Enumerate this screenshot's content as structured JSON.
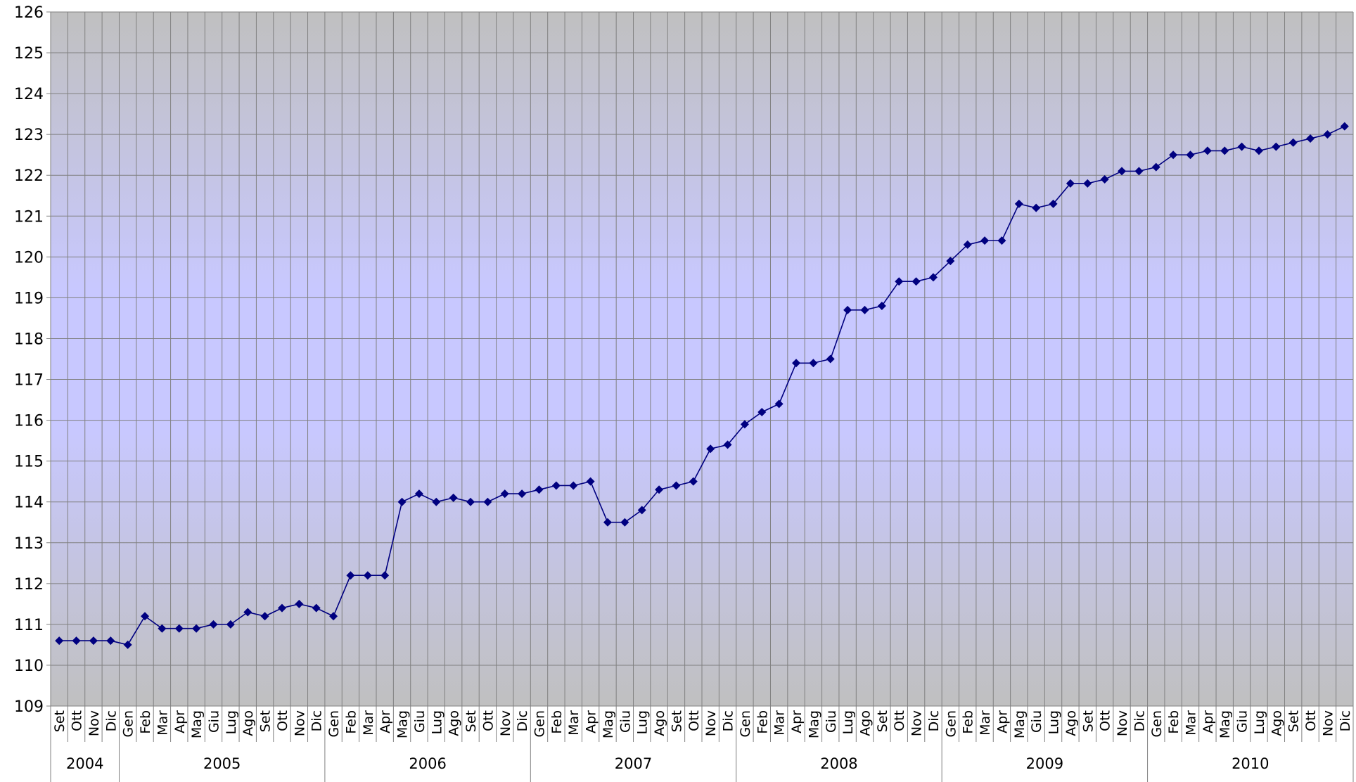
{
  "chart_data": {
    "type": "line",
    "categories": [
      {
        "label": "Set",
        "group": "2004"
      },
      {
        "label": "Ott",
        "group": "2004"
      },
      {
        "label": "Nov",
        "group": "2004"
      },
      {
        "label": "Dic",
        "group": "2004"
      },
      {
        "label": "Gen",
        "group": "2005"
      },
      {
        "label": "Feb",
        "group": "2005"
      },
      {
        "label": "Mar",
        "group": "2005"
      },
      {
        "label": "Apr",
        "group": "2005"
      },
      {
        "label": "Mag",
        "group": "2005"
      },
      {
        "label": "Giu",
        "group": "2005"
      },
      {
        "label": "Lug",
        "group": "2005"
      },
      {
        "label": "Ago",
        "group": "2005"
      },
      {
        "label": "Set",
        "group": "2005"
      },
      {
        "label": "Ott",
        "group": "2005"
      },
      {
        "label": "Nov",
        "group": "2005"
      },
      {
        "label": "Dic",
        "group": "2005"
      },
      {
        "label": "Gen",
        "group": "2006"
      },
      {
        "label": "Feb",
        "group": "2006"
      },
      {
        "label": "Mar",
        "group": "2006"
      },
      {
        "label": "Apr",
        "group": "2006"
      },
      {
        "label": "Mag",
        "group": "2006"
      },
      {
        "label": "Giu",
        "group": "2006"
      },
      {
        "label": "Lug",
        "group": "2006"
      },
      {
        "label": "Ago",
        "group": "2006"
      },
      {
        "label": "Set",
        "group": "2006"
      },
      {
        "label": "Ott",
        "group": "2006"
      },
      {
        "label": "Nov",
        "group": "2006"
      },
      {
        "label": "Dic",
        "group": "2006"
      },
      {
        "label": "Gen",
        "group": "2007"
      },
      {
        "label": "Feb",
        "group": "2007"
      },
      {
        "label": "Mar",
        "group": "2007"
      },
      {
        "label": "Apr",
        "group": "2007"
      },
      {
        "label": "Mag",
        "group": "2007"
      },
      {
        "label": "Giu",
        "group": "2007"
      },
      {
        "label": "Lug",
        "group": "2007"
      },
      {
        "label": "Ago",
        "group": "2007"
      },
      {
        "label": "Set",
        "group": "2007"
      },
      {
        "label": "Ott",
        "group": "2007"
      },
      {
        "label": "Nov",
        "group": "2007"
      },
      {
        "label": "Dic",
        "group": "2007"
      },
      {
        "label": "Gen",
        "group": "2008"
      },
      {
        "label": "Feb",
        "group": "2008"
      },
      {
        "label": "Mar",
        "group": "2008"
      },
      {
        "label": "Apr",
        "group": "2008"
      },
      {
        "label": "Mag",
        "group": "2008"
      },
      {
        "label": "Giu",
        "group": "2008"
      },
      {
        "label": "Lug",
        "group": "2008"
      },
      {
        "label": "Ago",
        "group": "2008"
      },
      {
        "label": "Set",
        "group": "2008"
      },
      {
        "label": "Ott",
        "group": "2008"
      },
      {
        "label": "Nov",
        "group": "2008"
      },
      {
        "label": "Dic",
        "group": "2008"
      },
      {
        "label": "Gen",
        "group": "2009"
      },
      {
        "label": "Feb",
        "group": "2009"
      },
      {
        "label": "Mar",
        "group": "2009"
      },
      {
        "label": "Apr",
        "group": "2009"
      },
      {
        "label": "Mag",
        "group": "2009"
      },
      {
        "label": "Giu",
        "group": "2009"
      },
      {
        "label": "Lug",
        "group": "2009"
      },
      {
        "label": "Ago",
        "group": "2009"
      },
      {
        "label": "Set",
        "group": "2009"
      },
      {
        "label": "Ott",
        "group": "2009"
      },
      {
        "label": "Nov",
        "group": "2009"
      },
      {
        "label": "Dic",
        "group": "2009"
      },
      {
        "label": "Gen",
        "group": "2010"
      },
      {
        "label": "Feb",
        "group": "2010"
      },
      {
        "label": "Mar",
        "group": "2010"
      },
      {
        "label": "Apr",
        "group": "2010"
      },
      {
        "label": "Mag",
        "group": "2010"
      },
      {
        "label": "Giu",
        "group": "2010"
      },
      {
        "label": "Lug",
        "group": "2010"
      },
      {
        "label": "Ago",
        "group": "2010"
      },
      {
        "label": "Set",
        "group": "2010"
      },
      {
        "label": "Ott",
        "group": "2010"
      },
      {
        "label": "Nov",
        "group": "2010"
      },
      {
        "label": "Dic",
        "group": "2010"
      }
    ],
    "values": [
      110.6,
      110.6,
      110.6,
      110.6,
      110.5,
      111.2,
      110.9,
      110.9,
      110.9,
      111.0,
      111.0,
      111.3,
      111.2,
      111.4,
      111.5,
      111.4,
      111.2,
      112.2,
      112.2,
      112.2,
      114.0,
      114.2,
      114.0,
      114.1,
      114.0,
      114.0,
      114.2,
      114.2,
      114.3,
      114.4,
      114.4,
      114.5,
      113.5,
      113.5,
      113.8,
      114.3,
      114.4,
      114.5,
      115.3,
      115.4,
      115.9,
      116.2,
      116.4,
      117.4,
      117.4,
      117.5,
      118.7,
      118.7,
      118.8,
      119.4,
      119.4,
      119.5,
      119.9,
      120.3,
      120.4,
      120.4,
      121.3,
      121.2,
      121.3,
      121.8,
      121.8,
      121.9,
      122.1,
      122.1,
      122.2,
      122.5,
      122.5,
      122.6,
      122.6,
      122.7,
      122.6,
      122.7,
      122.8,
      122.9,
      123.0,
      123.2
    ],
    "color": "#000080",
    "ylim": [
      109,
      126
    ],
    "yticks": [
      109,
      110,
      111,
      112,
      113,
      114,
      115,
      116,
      117,
      118,
      119,
      120,
      121,
      122,
      123,
      124,
      125,
      126
    ],
    "grid": true
  }
}
